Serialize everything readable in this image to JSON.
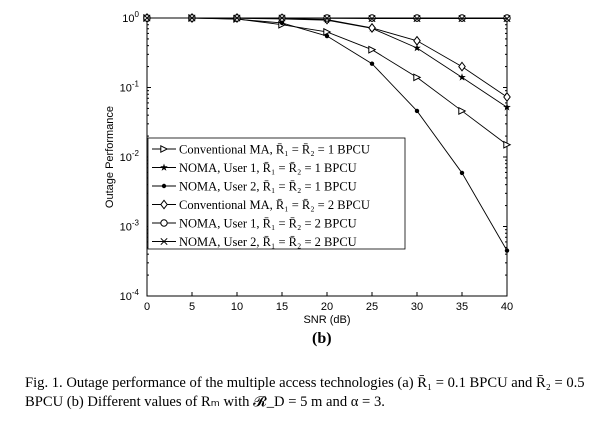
{
  "chart_data": {
    "type": "line",
    "title": "",
    "xlabel": "SNR (dB)",
    "ylabel": "Outage Performance",
    "xlim": [
      0,
      40
    ],
    "ylim": [
      0.0001,
      1
    ],
    "yscale": "log",
    "x": [
      0,
      5,
      10,
      15,
      20,
      25,
      30,
      35,
      40
    ],
    "xticks": [
      "0",
      "5",
      "10",
      "15",
      "20",
      "25",
      "30",
      "35",
      "40"
    ],
    "yticks": [
      {
        "base": "10",
        "exp": "0"
      },
      {
        "base": "10",
        "exp": "-1"
      },
      {
        "base": "10",
        "exp": "-2"
      },
      {
        "base": "10",
        "exp": "-3"
      },
      {
        "base": "10",
        "exp": "-4"
      }
    ],
    "legend_position": "center-left",
    "series": [
      {
        "name": "Conventional MA, R̄₁ = R̄₂ = 1 BPCU",
        "marker": "triangle-right",
        "values": [
          1,
          1,
          0.97,
          0.8,
          0.63,
          0.35,
          0.14,
          0.046,
          0.015
        ]
      },
      {
        "name": "NOMA, User 1, R̄₁ = R̄₂ = 1 BPCU",
        "marker": "star",
        "values": [
          1,
          1,
          0.99,
          0.97,
          0.93,
          0.71,
          0.37,
          0.14,
          0.052
        ]
      },
      {
        "name": "NOMA, User 2, R̄₁ = R̄₂ = 1 BPCU",
        "marker": "dot",
        "values": [
          1,
          1,
          0.96,
          0.85,
          0.55,
          0.22,
          0.046,
          0.0059,
          0.00045
        ]
      },
      {
        "name": "Conventional MA, R̄₁ = R̄₂ = 2 BPCU",
        "marker": "diamond",
        "values": [
          1,
          1,
          1,
          0.99,
          0.95,
          0.72,
          0.47,
          0.2,
          0.073
        ]
      },
      {
        "name": "NOMA, User 1, R̄₁ = R̄₂ = 2 BPCU",
        "marker": "circle",
        "values": [
          1,
          1,
          1,
          1,
          1,
          1,
          1,
          1,
          1
        ]
      },
      {
        "name": "NOMA, User 2, R̄₁ = R̄₂ = 2 BPCU",
        "marker": "x",
        "values": [
          1,
          1,
          1,
          1,
          0.99,
          0.98,
          0.98,
          0.98,
          0.98
        ]
      }
    ]
  },
  "subfigure_label": "(b)",
  "caption": "Fig. 1.   Outage performance of the multiple access technologies (a) R̄₁ = 0.1 BPCU and R̄₂ = 0.5 BPCU (b) Different values of Rₘ with 𝓡_D = 5 m and α = 3."
}
